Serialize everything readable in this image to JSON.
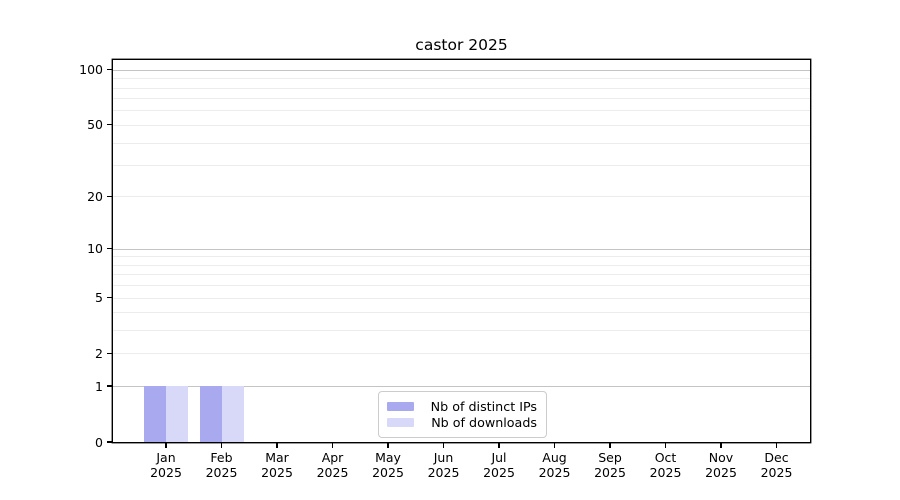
{
  "figure": {
    "background": "#ffffff",
    "text_color": "#000000",
    "spine_color": "#000000"
  },
  "chart_data": {
    "type": "bar",
    "title": "castor 2025",
    "xlabel": "",
    "ylabel": "",
    "yscale": "log1p",
    "ylim": [
      0,
      113
    ],
    "y_tick_labels": [
      "0",
      "1",
      "2",
      "5",
      "10",
      "20",
      "50",
      "100"
    ],
    "y_tick_values": [
      0,
      1,
      2,
      5,
      10,
      20,
      50,
      100
    ],
    "categories": [
      {
        "month": "Jan",
        "year": "2025"
      },
      {
        "month": "Feb",
        "year": "2025"
      },
      {
        "month": "Mar",
        "year": "2025"
      },
      {
        "month": "Apr",
        "year": "2025"
      },
      {
        "month": "May",
        "year": "2025"
      },
      {
        "month": "Jun",
        "year": "2025"
      },
      {
        "month": "Jul",
        "year": "2025"
      },
      {
        "month": "Aug",
        "year": "2025"
      },
      {
        "month": "Sep",
        "year": "2025"
      },
      {
        "month": "Oct",
        "year": "2025"
      },
      {
        "month": "Nov",
        "year": "2025"
      },
      {
        "month": "Dec",
        "year": "2025"
      }
    ],
    "series": [
      {
        "name": "Nb of distinct IPs",
        "color": "#a9a9f0",
        "values": [
          1,
          1,
          0,
          0,
          0,
          0,
          0,
          0,
          0,
          0,
          0,
          0
        ]
      },
      {
        "name": "Nb of downloads",
        "color": "#d8d8f8",
        "values": [
          1,
          1,
          0,
          0,
          0,
          0,
          0,
          0,
          0,
          0,
          0,
          0
        ]
      }
    ],
    "grid": {
      "major_values": [
        1,
        10,
        100
      ],
      "major_color": "#c4c4c4",
      "minor_color": "#ececec"
    },
    "legend_position": "inside-bottom-center"
  }
}
